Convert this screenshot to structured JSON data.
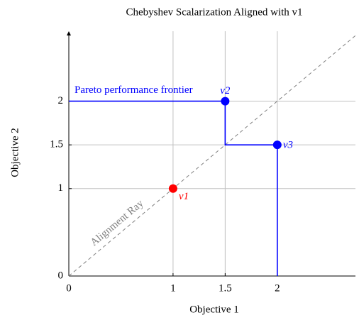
{
  "chart_data": {
    "type": "scatter",
    "title": "Chebyshev Scalarization Aligned with v1",
    "x_label": "Objective 1",
    "y_label": "Objective 2",
    "xlim": [
      0,
      2.75
    ],
    "ylim": [
      0,
      2.8
    ],
    "xticks": [
      0,
      1,
      1.5,
      2
    ],
    "yticks": [
      0,
      1,
      1.5,
      2
    ],
    "grid": true,
    "series": [
      {
        "name": "Pareto performance frontier",
        "color": "#0000ff",
        "x": [
          0,
          1.5,
          1.5,
          2,
          2
        ],
        "values": [
          2,
          2,
          1.5,
          1.5,
          0
        ]
      }
    ],
    "points": {
      "names": [
        "v1",
        "v2",
        "v3"
      ],
      "colors": [
        "#ff0000",
        "#0000ff",
        "#0000ff"
      ],
      "x": [
        1,
        1.5,
        2
      ],
      "values": [
        1,
        2,
        1.5
      ]
    },
    "ray": {
      "label": "Alignment Ray",
      "color": "#808080"
    }
  }
}
